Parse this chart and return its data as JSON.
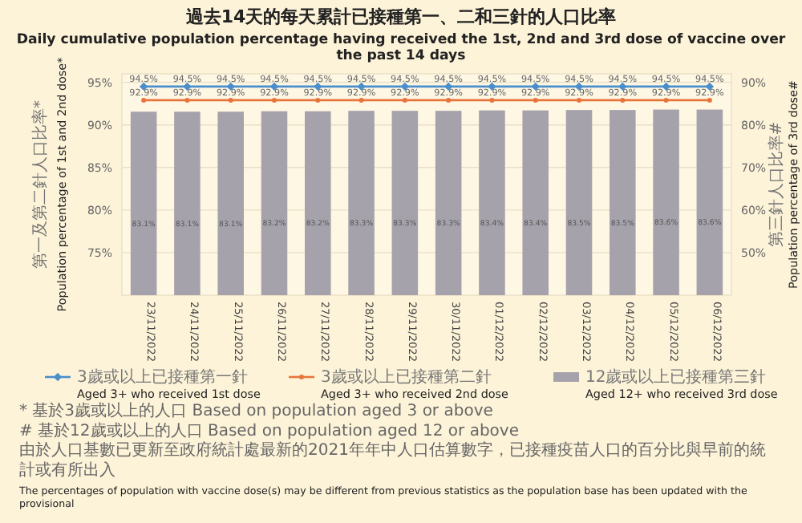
{
  "chart_data": {
    "type": "bar",
    "title": "過去14天的每天累計已接種第一、二和三針的人口比率",
    "subtitle": "Daily cumulative population percentage having received the 1st, 2nd and 3rd dose of vaccine over the past 14 days",
    "categories": [
      "23/11/2022",
      "24/11/2022",
      "25/11/2022",
      "26/11/2022",
      "27/11/2022",
      "28/11/2022",
      "29/11/2022",
      "30/11/2022",
      "01/12/2022",
      "02/12/2022",
      "03/12/2022",
      "04/12/2022",
      "05/12/2022",
      "06/12/2022"
    ],
    "series": [
      {
        "name": "3歲或以上已接種第一針\nAged 3+ who received 1st dose",
        "type": "line",
        "color": "#4a8fcc",
        "marker": "diamond",
        "values": [
          94.5,
          94.5,
          94.5,
          94.5,
          94.5,
          94.5,
          94.5,
          94.5,
          94.5,
          94.5,
          94.5,
          94.5,
          94.5,
          94.5
        ],
        "value_labels": [
          "94.5%",
          "94.5%",
          "94.5%",
          "94.5%",
          "94.5%",
          "94.5%",
          "94.5%",
          "94.5%",
          "94.5%",
          "94.5%",
          "94.5%",
          "94.5%",
          "94.5%",
          "94.5%"
        ]
      },
      {
        "name": "3歲或以上已接種第二針\nAged 3+ who received 2nd dose",
        "type": "line",
        "color": "#e8743b",
        "marker": "circle",
        "values": [
          92.9,
          92.9,
          92.9,
          92.9,
          92.9,
          92.9,
          92.9,
          92.9,
          92.9,
          92.9,
          92.9,
          92.9,
          92.9,
          92.9
        ],
        "value_labels": [
          "92.9%",
          "92.9%",
          "92.9%",
          "92.9%",
          "92.9%",
          "92.9%",
          "92.9%",
          "92.9%",
          "92.9%",
          "92.9%",
          "92.9%",
          "92.9%",
          "92.9%",
          "92.9%"
        ]
      },
      {
        "name": "12歲或以上已接種第三針\nAged 12+ who received 3rd dose",
        "axis": "y2",
        "color": "#a6a2ab",
        "values": [
          83.1,
          83.1,
          83.1,
          83.2,
          83.2,
          83.3,
          83.3,
          83.3,
          83.4,
          83.4,
          83.5,
          83.5,
          83.6,
          83.6
        ],
        "value_labels": [
          "83.1%",
          "83.1%",
          "83.1%",
          "83.2%",
          "83.2%",
          "83.3%",
          "83.3%",
          "83.3%",
          "83.4%",
          "83.4%",
          "83.5%",
          "83.5%",
          "83.6%",
          "83.6%"
        ]
      }
    ],
    "ylabel": "第一及第二針人口比率*\nPopulation percentage of 1st and 2nd dose*",
    "y2label": "第三針人口比率#\nPopulation percentage of 3rd dose#",
    "ylim": [
      70,
      96
    ],
    "yticks": [
      {
        "value": 75,
        "label": "75%"
      },
      {
        "value": 80,
        "label": "80%"
      },
      {
        "value": 85,
        "label": "85%"
      },
      {
        "value": 90,
        "label": "90%"
      },
      {
        "value": 95,
        "label": "95%"
      }
    ],
    "y2lim": [
      40,
      92
    ],
    "y2ticks": [
      {
        "value": 50,
        "label": "50%"
      },
      {
        "value": 60,
        "label": "60%"
      },
      {
        "value": 70,
        "label": "70%"
      },
      {
        "value": 80,
        "label": "80%"
      },
      {
        "value": 90,
        "label": "90%"
      }
    ],
    "grid": "y",
    "legend": "bottom",
    "annotations": [
      "* 基於3歲或以上的人口 Based on population aged 3 or above",
      "# 基於12歲或以上的人口 Based on population aged 12 or above",
      "由於人口基數已更新至政府統計處最新的2021年年中人口估算數字，已接種疫苗人口的百分比與早前的統計或有所出入",
      "The percentages of population with vaccine dose(s) may be different from previous statistics as the population base has been updated with the provisional"
    ]
  }
}
